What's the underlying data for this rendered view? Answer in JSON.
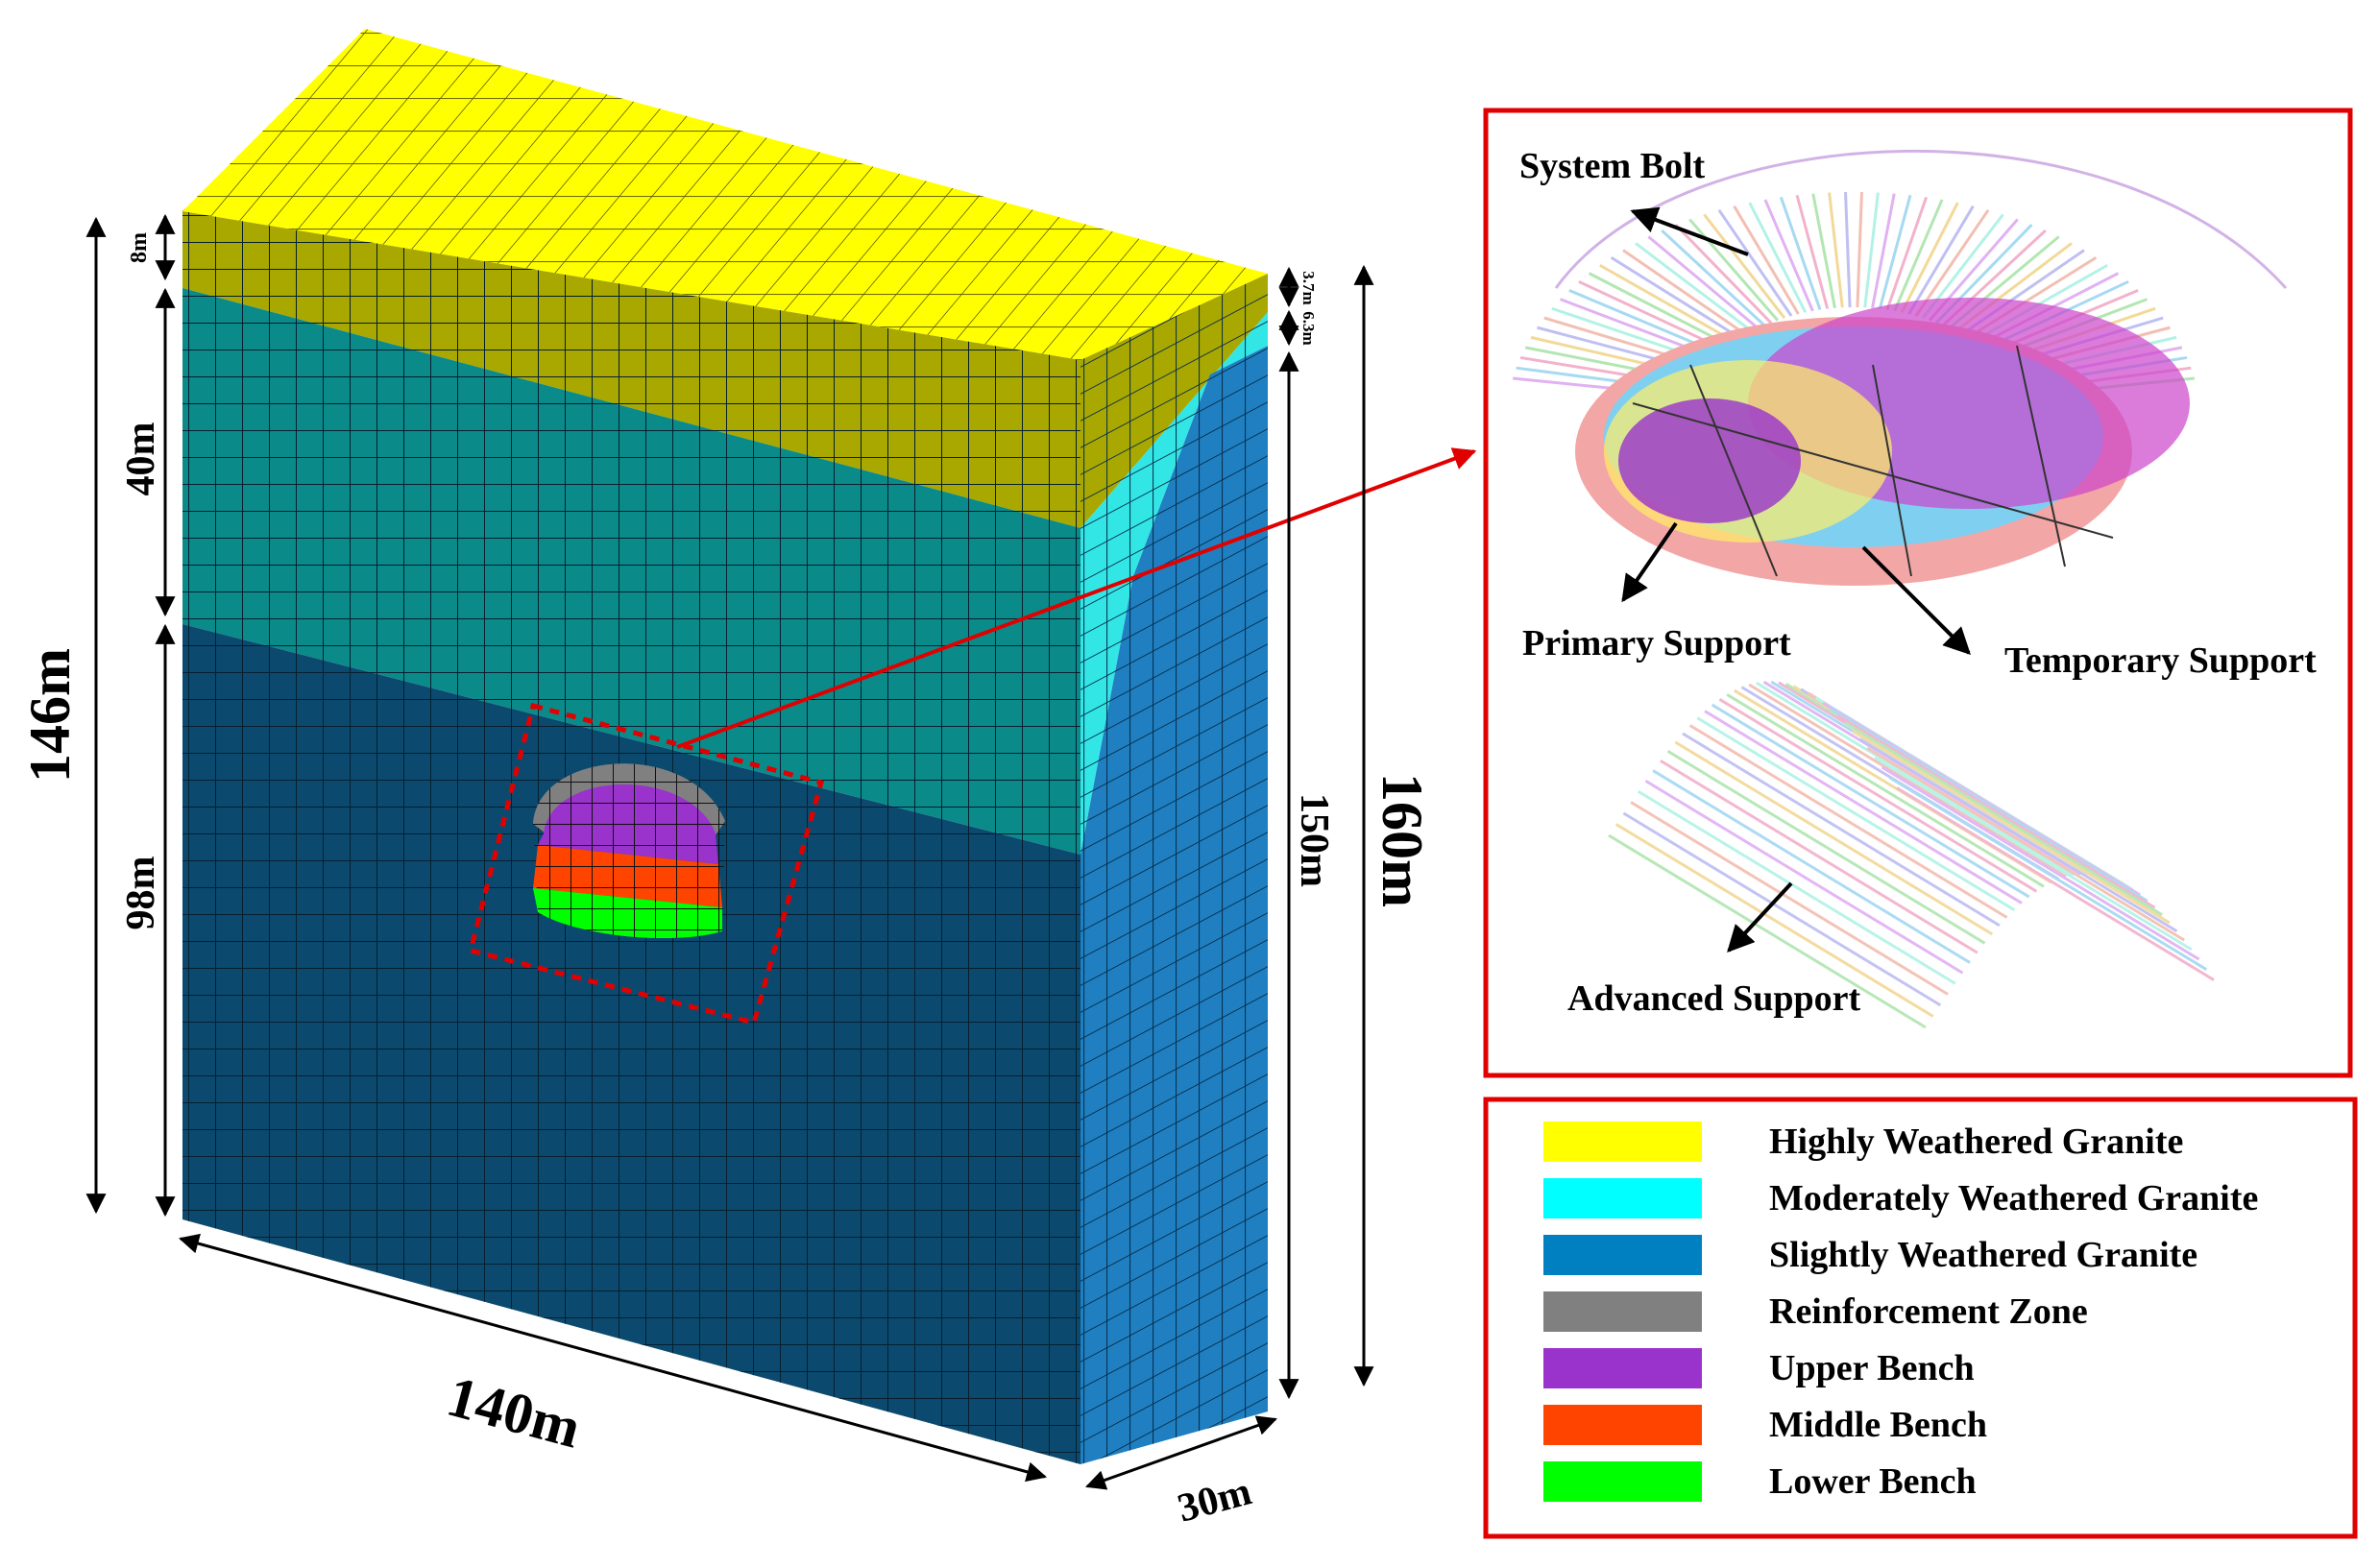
{
  "model": {
    "dimensions": {
      "total_height_left": "146m",
      "layer_top": "8m",
      "layer_middle": "40m",
      "layer_bottom": "98m",
      "right_top_a": "3.7m",
      "right_top_b": "6.3m",
      "right_side": "150m",
      "total_height_right": "160m",
      "length": "140m",
      "width": "30m"
    }
  },
  "support_panel": {
    "labels": {
      "system_bolt": "System Bolt",
      "primary_support": "Primary Support",
      "temporary_support": "Temporary Support",
      "advanced_support": "Advanced Support"
    }
  },
  "legend": {
    "items": [
      {
        "label": "Highly Weathered Granite",
        "color": "#ffff00"
      },
      {
        "label": "Moderately Weathered Granite",
        "color": "#00ffff"
      },
      {
        "label": "Slightly Weathered Granite",
        "color": "#0080c0"
      },
      {
        "label": "Reinforcement Zone",
        "color": "#808080"
      },
      {
        "label": "Upper Bench",
        "color": "#9933cc"
      },
      {
        "label": "Middle Bench",
        "color": "#ff4400"
      },
      {
        "label": "Lower Bench",
        "color": "#00ff00"
      }
    ]
  },
  "colors": {
    "highly_weathered_side": "#a8a800",
    "moderately_weathered_front": "#0b8a8a",
    "slightly_weathered_front": "#0b4a6e",
    "moderately_weathered_side": "#33e6e6",
    "slightly_weathered_side": "#1f7fc0",
    "callout_red": "#e00000"
  }
}
